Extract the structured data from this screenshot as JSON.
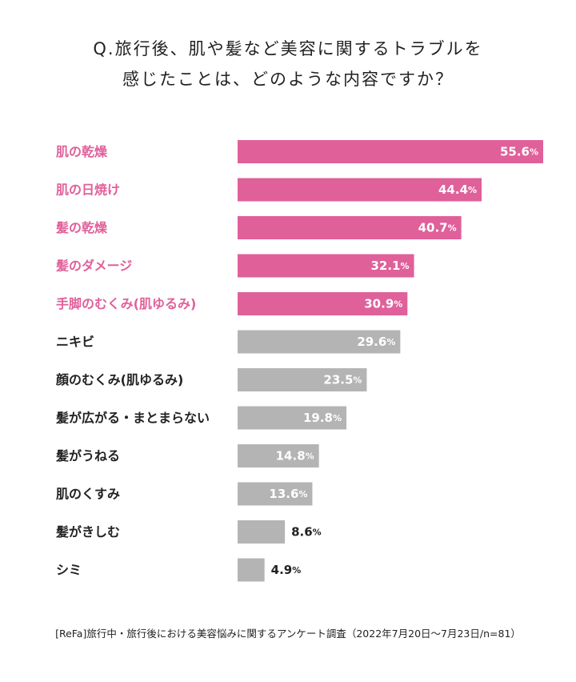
{
  "title": {
    "line1": "Q.旅行後、肌や髪など美容に関するトラブルを",
    "line2": "感じたことは、どのような内容ですか？"
  },
  "chart_data": {
    "type": "bar",
    "orientation": "horizontal",
    "categories": [
      "肌の乾燥",
      "肌の日焼け",
      "髪の乾燥",
      "髪のダメージ",
      "手脚のむくみ(肌ゆるみ)",
      "ニキビ",
      "顔のむくみ(肌ゆるみ)",
      "髪が広がる・まとまらない",
      "髪がうねる",
      "肌のくすみ",
      "髪がきしむ",
      "シミ"
    ],
    "values": [
      55.6,
      44.4,
      40.7,
      32.1,
      30.9,
      29.6,
      23.5,
      19.8,
      14.8,
      13.6,
      8.6,
      4.9
    ],
    "value_unit": "%",
    "xlim": [
      0,
      55.6
    ],
    "highlight_count": 5,
    "grid": false,
    "colors": {
      "highlight_bar": "#e0609a",
      "highlight_label": "#e0609a",
      "normal_bar": "#b4b4b4",
      "normal_label": "#222222",
      "inside_value": "#ffffff",
      "outside_value": "#222222"
    }
  },
  "footnote": "[ReFa]旅行中・旅行後における美容悩みに関するアンケート調査（2022年7月20日～7月23日/n=81）"
}
